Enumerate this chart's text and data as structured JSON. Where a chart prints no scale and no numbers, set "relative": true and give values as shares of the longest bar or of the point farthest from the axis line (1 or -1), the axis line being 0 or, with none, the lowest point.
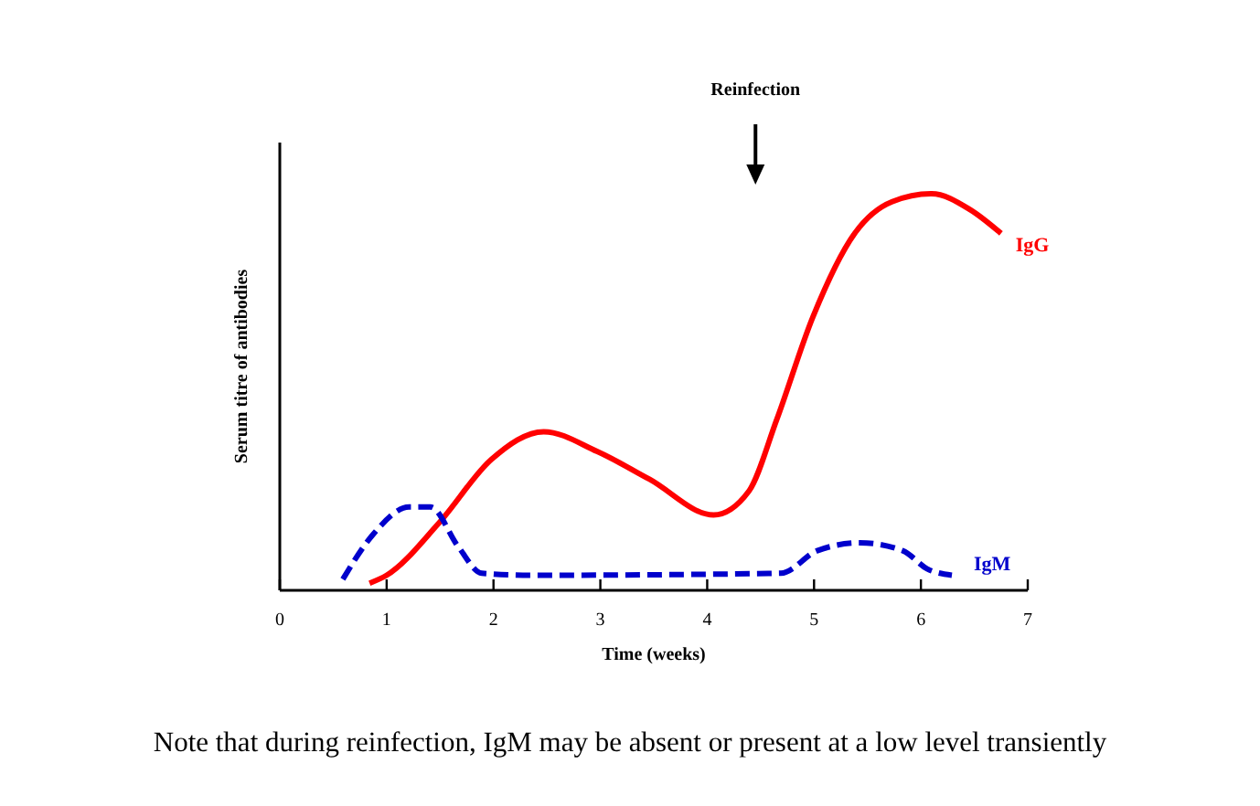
{
  "chart_data": {
    "type": "line",
    "relative": true,
    "xlabel": "Time (weeks)",
    "ylabel": "Serum titre of antibodies",
    "xlim": [
      0,
      7
    ],
    "xticks": [
      0,
      1,
      2,
      3,
      4,
      5,
      6,
      7
    ],
    "grid": false,
    "marker": "none",
    "series": [
      {
        "name": "IgG",
        "color": "#ff0000",
        "line_style": "solid",
        "x": [
          0.84,
          1.0,
          1.49,
          1.98,
          2.47,
          2.97,
          3.46,
          4.06,
          4.39,
          4.65,
          4.99,
          5.38,
          5.73,
          6.1,
          6.46,
          6.75
        ],
        "values": [
          0.018,
          0.038,
          0.17,
          0.33,
          0.4,
          0.35,
          0.28,
          0.19,
          0.25,
          0.43,
          0.69,
          0.9,
          0.98,
          1.0,
          0.96,
          0.9
        ]
      },
      {
        "name": "IgM",
        "color": "#0000cc",
        "line_style": "dashed",
        "x": [
          0.59,
          0.87,
          1.21,
          1.41,
          1.67,
          1.89,
          2.35,
          4.69,
          5.03,
          5.43,
          5.83,
          6.06,
          6.29
        ],
        "values": [
          0.028,
          0.14,
          0.21,
          0.21,
          0.11,
          0.043,
          0.038,
          0.043,
          0.1,
          0.12,
          0.1,
          0.054,
          0.038
        ]
      }
    ],
    "annotations": [
      "Reinfection",
      "Note that during reinfection, IgM may be absent or present at a low level transiently"
    ]
  }
}
